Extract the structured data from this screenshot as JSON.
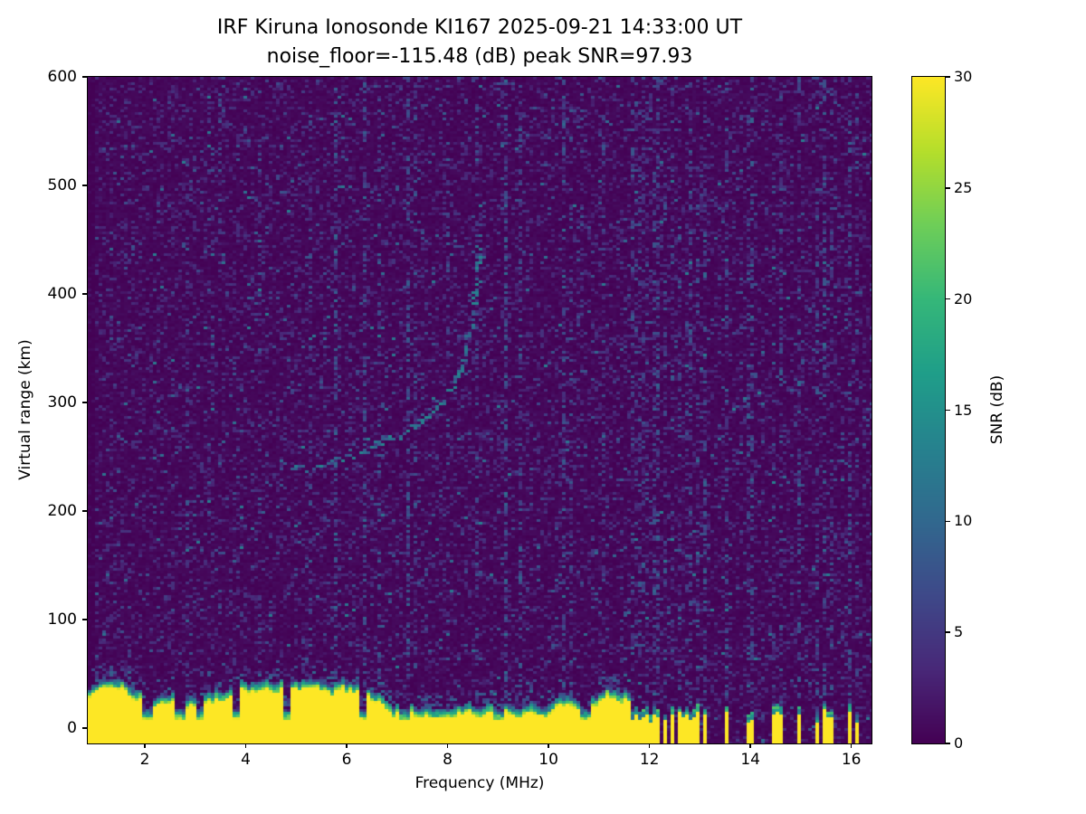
{
  "colors": {
    "figure_background": "#ffffff",
    "text": "#000000",
    "heatmap_min": "#440154",
    "heatmap_max": "#fde725"
  },
  "chart_data": {
    "type": "heatmap",
    "title": "IRF Kiruna Ionosonde KI167 2025-09-21 14:33:00  UT",
    "subtitle": "noise_floor=-115.48 (dB) peak SNR=97.93",
    "station": "IRF Kiruna Ionosonde KI167",
    "timestamp_ut": "2025-09-21 14:33:00 UT",
    "noise_floor_db": -115.48,
    "peak_snr_db": 97.93,
    "xlabel": "Frequency (MHz)",
    "ylabel": "Virtual range (km)",
    "x_range_mhz": [
      0.87,
      16.4
    ],
    "y_range_km": [
      -14,
      600
    ],
    "x_ticks": [
      2,
      4,
      6,
      8,
      10,
      12,
      14,
      16
    ],
    "y_ticks": [
      0,
      100,
      200,
      300,
      400,
      500,
      600
    ],
    "grid": false,
    "colorbar": {
      "label": "SNR (dB)",
      "range": [
        0,
        30
      ],
      "ticks": [
        0,
        5,
        10,
        15,
        20,
        25,
        30
      ],
      "colormap": "viridis",
      "position": "right"
    },
    "features": {
      "background_snr_db": 0,
      "noise_speckle": {
        "fraction": 0.3,
        "typical_db": [
          1,
          6
        ],
        "max_db": 13
      },
      "ground_clutter": {
        "description": "saturated near-range echo band along the bottom",
        "snr_db": 30,
        "continuous_below_mhz": 11.62,
        "top_km_mean": 26,
        "top_km_range": [
          10,
          38
        ],
        "notches_mhz": [
          2.05,
          2.7,
          3.1,
          3.8,
          4.8,
          6.3,
          7.15,
          9.0,
          10.7
        ],
        "intermittent_ticks_mhz": [
          11.65,
          11.72,
          11.8,
          11.88,
          11.96,
          12.05,
          12.15,
          12.28,
          12.42,
          12.55,
          12.68,
          12.82,
          12.95,
          13.08,
          13.5,
          13.92,
          14.02,
          14.45,
          14.55,
          14.92,
          15.3,
          15.42,
          15.55,
          15.95,
          16.08
        ]
      },
      "echo_trace": {
        "description": "faint F-region ionospheric echo rising to a cusp",
        "points_mhz_km": [
          [
            4.95,
            237
          ],
          [
            5.35,
            242
          ],
          [
            5.8,
            248
          ],
          [
            6.25,
            255
          ],
          [
            6.7,
            264
          ],
          [
            7.1,
            272
          ],
          [
            7.45,
            283
          ],
          [
            7.75,
            295
          ],
          [
            8.0,
            308
          ],
          [
            8.2,
            325
          ],
          [
            8.35,
            345
          ],
          [
            8.45,
            368
          ],
          [
            8.52,
            395
          ],
          [
            8.58,
            425
          ],
          [
            8.63,
            455
          ]
        ],
        "typical_snr_db": [
          7,
          14
        ]
      },
      "interference_lines": [
        {
          "mhz": 2.85,
          "strength": 0.3
        },
        {
          "mhz": 3.5,
          "strength": 0.25
        },
        {
          "mhz": 4.3,
          "strength": 0.3
        },
        {
          "mhz": 5.25,
          "strength": 0.35
        },
        {
          "mhz": 5.8,
          "strength": 0.8
        },
        {
          "mhz": 6.35,
          "strength": 0.6
        },
        {
          "mhz": 6.6,
          "strength": 0.35
        },
        {
          "mhz": 7.2,
          "strength": 0.7
        },
        {
          "mhz": 7.35,
          "strength": 0.4
        },
        {
          "mhz": 8.0,
          "strength": 0.3
        },
        {
          "mhz": 8.55,
          "strength": 0.5
        },
        {
          "mhz": 9.15,
          "strength": 1.0
        },
        {
          "mhz": 9.4,
          "strength": 0.45
        },
        {
          "mhz": 10.25,
          "strength": 0.7
        },
        {
          "mhz": 10.45,
          "strength": 0.35
        },
        {
          "mhz": 11.05,
          "strength": 0.35
        }
      ],
      "broadcast_band_stripes": {
        "mhz_start": 11.6,
        "mhz_end": 16.4,
        "aligned_with_clutter_ticks": true,
        "strength": 0.4
      }
    }
  }
}
